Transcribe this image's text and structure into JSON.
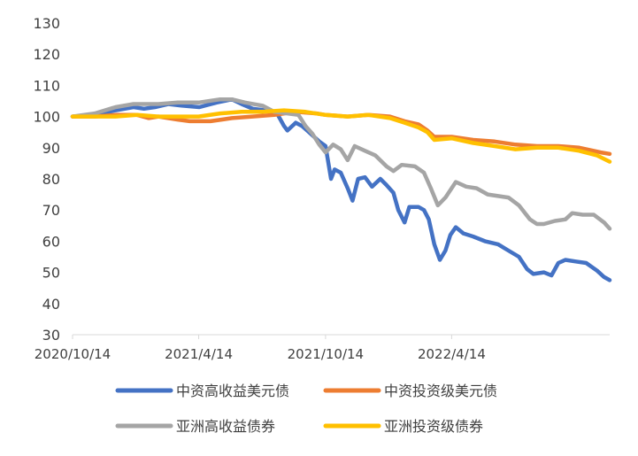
{
  "chart_data": {
    "type": "line",
    "title": "",
    "xlabel": "",
    "ylabel": "",
    "ylim": [
      30,
      130
    ],
    "yticks": [
      30,
      40,
      50,
      60,
      70,
      80,
      90,
      100,
      110,
      120,
      130
    ],
    "x_tick_labels": [
      "2020/10/14",
      "2021/4/14",
      "2021/10/14",
      "2022/4/14"
    ],
    "x_tick_dates": [
      "2020-10-14",
      "2021-04-14",
      "2021-10-14",
      "2022-04-14"
    ],
    "x_range": [
      "2020-10-14",
      "2022-11-28"
    ],
    "grid": false,
    "legend_position": "bottom",
    "series": [
      {
        "name": "中资高收益美元债",
        "color": "#4472C4",
        "points": [
          [
            "2020-10-14",
            100
          ],
          [
            "2020-11-15",
            100.5
          ],
          [
            "2020-12-15",
            102
          ],
          [
            "2021-01-10",
            103
          ],
          [
            "2021-01-25",
            102.5
          ],
          [
            "2021-02-10",
            103
          ],
          [
            "2021-03-01",
            104
          ],
          [
            "2021-03-20",
            103.5
          ],
          [
            "2021-04-15",
            103
          ],
          [
            "2021-05-10",
            104.5
          ],
          [
            "2021-06-01",
            105.5
          ],
          [
            "2021-06-15",
            104
          ],
          [
            "2021-07-01",
            102.5
          ],
          [
            "2021-07-20",
            102
          ],
          [
            "2021-08-05",
            101
          ],
          [
            "2021-08-15",
            97
          ],
          [
            "2021-08-20",
            95.5
          ],
          [
            "2021-09-01",
            98
          ],
          [
            "2021-09-10",
            97
          ],
          [
            "2021-09-20",
            95
          ],
          [
            "2021-10-05",
            92
          ],
          [
            "2021-10-14",
            90.5
          ],
          [
            "2021-10-22",
            80
          ],
          [
            "2021-10-27",
            83
          ],
          [
            "2021-11-05",
            82
          ],
          [
            "2021-11-15",
            77
          ],
          [
            "2021-11-22",
            73
          ],
          [
            "2021-11-30",
            80
          ],
          [
            "2021-12-10",
            80.5
          ],
          [
            "2021-12-20",
            77.5
          ],
          [
            "2022-01-01",
            80
          ],
          [
            "2022-01-10",
            78
          ],
          [
            "2022-01-20",
            75.5
          ],
          [
            "2022-01-27",
            70
          ],
          [
            "2022-02-05",
            66
          ],
          [
            "2022-02-12",
            71
          ],
          [
            "2022-02-25",
            71
          ],
          [
            "2022-03-05",
            70
          ],
          [
            "2022-03-12",
            67
          ],
          [
            "2022-03-20",
            59
          ],
          [
            "2022-03-28",
            54
          ],
          [
            "2022-04-05",
            57
          ],
          [
            "2022-04-12",
            62
          ],
          [
            "2022-04-20",
            64.5
          ],
          [
            "2022-05-01",
            62.5
          ],
          [
            "2022-05-15",
            61.5
          ],
          [
            "2022-06-01",
            60
          ],
          [
            "2022-06-20",
            59
          ],
          [
            "2022-07-05",
            57
          ],
          [
            "2022-07-20",
            55
          ],
          [
            "2022-08-01",
            51
          ],
          [
            "2022-08-10",
            49.5
          ],
          [
            "2022-08-25",
            50
          ],
          [
            "2022-09-05",
            49
          ],
          [
            "2022-09-15",
            53
          ],
          [
            "2022-09-25",
            54
          ],
          [
            "2022-10-10",
            53.5
          ],
          [
            "2022-10-25",
            53
          ],
          [
            "2022-11-10",
            50.5
          ],
          [
            "2022-11-20",
            48.5
          ],
          [
            "2022-11-28",
            47.5
          ]
        ]
      },
      {
        "name": "中资投资级美元债",
        "color": "#ED7D31",
        "points": [
          [
            "2020-10-14",
            100
          ],
          [
            "2020-11-15",
            100
          ],
          [
            "2020-12-15",
            100.5
          ],
          [
            "2021-01-15",
            100.5
          ],
          [
            "2021-02-01",
            99.5
          ],
          [
            "2021-02-15",
            100
          ],
          [
            "2021-03-15",
            99
          ],
          [
            "2021-04-01",
            98.5
          ],
          [
            "2021-05-01",
            98.5
          ],
          [
            "2021-06-01",
            99.5
          ],
          [
            "2021-07-01",
            100
          ],
          [
            "2021-08-01",
            100.5
          ],
          [
            "2021-09-01",
            101.5
          ],
          [
            "2021-10-01",
            101
          ],
          [
            "2021-10-14",
            100.5
          ],
          [
            "2021-11-15",
            100
          ],
          [
            "2021-12-15",
            100.5
          ],
          [
            "2022-01-15",
            100
          ],
          [
            "2022-02-05",
            98.5
          ],
          [
            "2022-02-25",
            97.5
          ],
          [
            "2022-03-10",
            95.5
          ],
          [
            "2022-03-20",
            93.5
          ],
          [
            "2022-04-14",
            93.5
          ],
          [
            "2022-05-15",
            92.5
          ],
          [
            "2022-06-15",
            92
          ],
          [
            "2022-07-15",
            91
          ],
          [
            "2022-08-15",
            90.5
          ],
          [
            "2022-09-15",
            90.5
          ],
          [
            "2022-10-15",
            90
          ],
          [
            "2022-11-15",
            88.5
          ],
          [
            "2022-11-28",
            88
          ]
        ]
      },
      {
        "name": "亚洲高收益债券",
        "color": "#A5A5A5",
        "points": [
          [
            "2020-10-14",
            100
          ],
          [
            "2020-11-15",
            101
          ],
          [
            "2020-12-15",
            103
          ],
          [
            "2021-01-10",
            104
          ],
          [
            "2021-02-15",
            104
          ],
          [
            "2021-03-15",
            104.5
          ],
          [
            "2021-04-14",
            104.5
          ],
          [
            "2021-05-15",
            105.5
          ],
          [
            "2021-06-01",
            105.5
          ],
          [
            "2021-06-20",
            104.5
          ],
          [
            "2021-07-15",
            103.5
          ],
          [
            "2021-08-01",
            101.5
          ],
          [
            "2021-08-20",
            101
          ],
          [
            "2021-09-05",
            100.5
          ],
          [
            "2021-09-15",
            97
          ],
          [
            "2021-09-25",
            94.5
          ],
          [
            "2021-10-05",
            91
          ],
          [
            "2021-10-14",
            88.5
          ],
          [
            "2021-10-25",
            91
          ],
          [
            "2021-11-05",
            89.5
          ],
          [
            "2021-11-15",
            86
          ],
          [
            "2021-11-25",
            90.5
          ],
          [
            "2021-12-10",
            89
          ],
          [
            "2021-12-25",
            87.5
          ],
          [
            "2022-01-10",
            84
          ],
          [
            "2022-01-20",
            82.5
          ],
          [
            "2022-02-01",
            84.5
          ],
          [
            "2022-02-20",
            84
          ],
          [
            "2022-03-05",
            82
          ],
          [
            "2022-03-15",
            77
          ],
          [
            "2022-03-25",
            71.5
          ],
          [
            "2022-04-05",
            74
          ],
          [
            "2022-04-20",
            79
          ],
          [
            "2022-05-05",
            77.5
          ],
          [
            "2022-05-20",
            77
          ],
          [
            "2022-06-05",
            75
          ],
          [
            "2022-06-20",
            74.5
          ],
          [
            "2022-07-05",
            74
          ],
          [
            "2022-07-20",
            71.5
          ],
          [
            "2022-08-05",
            67
          ],
          [
            "2022-08-15",
            65.5
          ],
          [
            "2022-08-25",
            65.5
          ],
          [
            "2022-09-10",
            66.5
          ],
          [
            "2022-09-25",
            67
          ],
          [
            "2022-10-05",
            69
          ],
          [
            "2022-10-20",
            68.5
          ],
          [
            "2022-11-05",
            68.5
          ],
          [
            "2022-11-20",
            66
          ],
          [
            "2022-11-28",
            64
          ]
        ]
      },
      {
        "name": "亚洲投资级债券",
        "color": "#FFC000",
        "points": [
          [
            "2020-10-14",
            100
          ],
          [
            "2020-12-15",
            100
          ],
          [
            "2021-01-15",
            100.5
          ],
          [
            "2021-02-15",
            100
          ],
          [
            "2021-03-15",
            100
          ],
          [
            "2021-04-14",
            100
          ],
          [
            "2021-05-15",
            101
          ],
          [
            "2021-06-15",
            101.5
          ],
          [
            "2021-07-15",
            101.5
          ],
          [
            "2021-08-15",
            102
          ],
          [
            "2021-09-15",
            101.5
          ],
          [
            "2021-10-14",
            100.5
          ],
          [
            "2021-11-15",
            100
          ],
          [
            "2021-12-15",
            100.5
          ],
          [
            "2022-01-15",
            99.5
          ],
          [
            "2022-02-05",
            98
          ],
          [
            "2022-02-25",
            96.5
          ],
          [
            "2022-03-10",
            95
          ],
          [
            "2022-03-20",
            92.5
          ],
          [
            "2022-04-14",
            93
          ],
          [
            "2022-05-15",
            91.5
          ],
          [
            "2022-06-15",
            90.5
          ],
          [
            "2022-07-15",
            89.5
          ],
          [
            "2022-08-15",
            90
          ],
          [
            "2022-09-15",
            90
          ],
          [
            "2022-10-15",
            89
          ],
          [
            "2022-11-10",
            87.5
          ],
          [
            "2022-11-28",
            85.5
          ]
        ]
      }
    ]
  }
}
